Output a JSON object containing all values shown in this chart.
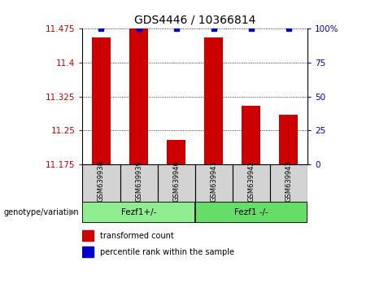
{
  "title": "GDS4446 / 10366814",
  "samples": [
    "GSM639938",
    "GSM639939",
    "GSM639940",
    "GSM639941",
    "GSM639942",
    "GSM639943"
  ],
  "red_values": [
    11.455,
    11.475,
    11.228,
    11.455,
    11.305,
    11.285
  ],
  "blue_values": [
    100,
    100,
    100,
    100,
    100,
    100
  ],
  "ylim_left": [
    11.175,
    11.475
  ],
  "ylim_right": [
    0,
    100
  ],
  "yticks_left": [
    11.175,
    11.25,
    11.325,
    11.4,
    11.475
  ],
  "yticks_right": [
    0,
    25,
    50,
    75,
    100
  ],
  "group1_label": "Fezf1+/-",
  "group2_label": "Fezf1 -/-",
  "group1_color": "#90EE90",
  "group2_color": "#66DD66",
  "bar_color": "#CC0000",
  "dot_color": "#0000CC",
  "left_label_color": "#CC0000",
  "right_label_color": "#0000CC",
  "group_label": "genotype/variation",
  "legend_red": "transformed count",
  "legend_blue": "percentile rank within the sample",
  "bg_color": "#ffffff",
  "plot_bg": "#ffffff",
  "bar_width": 0.5
}
